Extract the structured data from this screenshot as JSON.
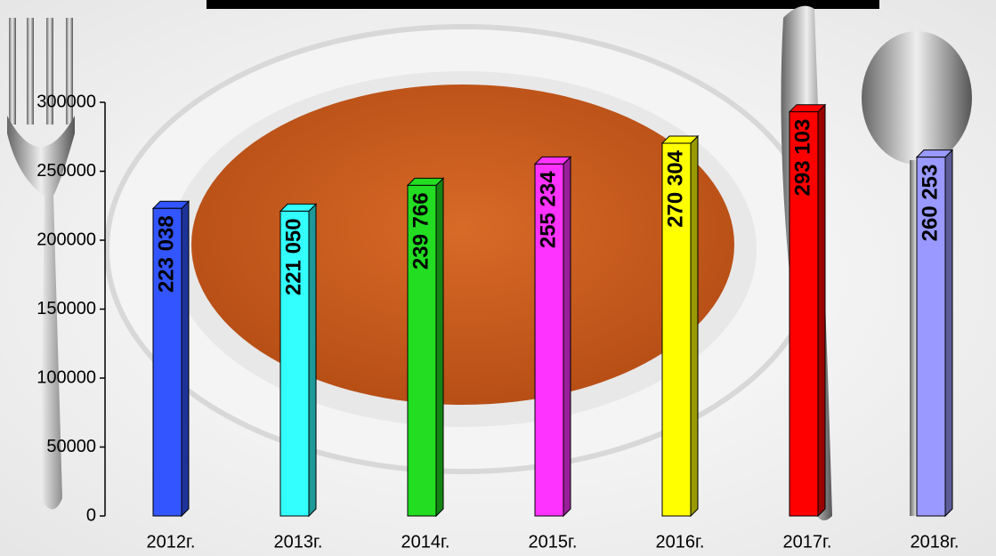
{
  "chart_data": {
    "type": "bar",
    "categories": [
      "2012г.",
      "2013г.",
      "2014г.",
      "2015г.",
      "2016г.",
      "2017г.",
      "2018г."
    ],
    "values": [
      223038,
      221050,
      239766,
      255234,
      270304,
      293103,
      260253
    ],
    "value_labels": [
      "223 038",
      "221 050",
      "239 766",
      "255 234",
      "270 304",
      "293 103",
      "260 253"
    ],
    "colors": [
      "#3355ff",
      "#33ffff",
      "#22dd22",
      "#ff33ff",
      "#ffff00",
      "#ff0000",
      "#9999ff"
    ],
    "ylim": [
      0,
      300000
    ],
    "yticks": [
      0,
      50000,
      100000,
      150000,
      200000,
      250000,
      300000
    ]
  }
}
